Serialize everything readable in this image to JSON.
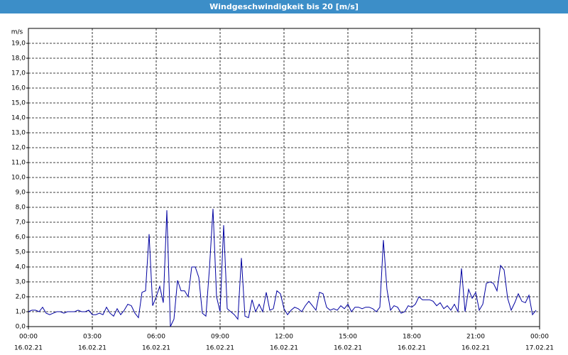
{
  "chart_data": {
    "type": "line",
    "title": "Windgeschwindigkeit bis 20 [m/s]",
    "y_label": "m/s",
    "xlim": [
      0,
      1440
    ],
    "xticks": [
      {
        "value": 0,
        "label": "00:00",
        "date": "16.02.21"
      },
      {
        "value": 180,
        "label": "03:00",
        "date": "16.02.21"
      },
      {
        "value": 360,
        "label": "06:00",
        "date": "16.02.21"
      },
      {
        "value": 540,
        "label": "09:00",
        "date": "16.02.21"
      },
      {
        "value": 720,
        "label": "12:00",
        "date": "16.02.21"
      },
      {
        "value": 900,
        "label": "15:00",
        "date": "16.02.21"
      },
      {
        "value": 1080,
        "label": "18:00",
        "date": "16.02.21"
      },
      {
        "value": 1260,
        "label": "21:00",
        "date": "16.02.21"
      },
      {
        "value": 1440,
        "label": "00:00",
        "date": "17.02.21"
      }
    ],
    "ylim": [
      0,
      20
    ],
    "yticks": [
      {
        "value": 0,
        "label": "0,0"
      },
      {
        "value": 1,
        "label": "1,0"
      },
      {
        "value": 2,
        "label": "2,0"
      },
      {
        "value": 3,
        "label": "3,0"
      },
      {
        "value": 4,
        "label": "4,0"
      },
      {
        "value": 5,
        "label": "5,0"
      },
      {
        "value": 6,
        "label": "6,0"
      },
      {
        "value": 7,
        "label": "7,0"
      },
      {
        "value": 8,
        "label": "8,0"
      },
      {
        "value": 9,
        "label": "9,0"
      },
      {
        "value": 10,
        "label": "10,0"
      },
      {
        "value": 11,
        "label": "11,0"
      },
      {
        "value": 12,
        "label": "12,0"
      },
      {
        "value": 13,
        "label": "13,0"
      },
      {
        "value": 14,
        "label": "14,0"
      },
      {
        "value": 15,
        "label": "15,0"
      },
      {
        "value": 16,
        "label": "16,0"
      },
      {
        "value": 17,
        "label": "17,0"
      },
      {
        "value": 18,
        "label": "18,0"
      },
      {
        "value": 19,
        "label": "19,0"
      }
    ],
    "grid": true,
    "x": [
      0,
      10,
      20,
      30,
      40,
      50,
      60,
      70,
      80,
      90,
      100,
      110,
      120,
      130,
      140,
      150,
      160,
      170,
      180,
      190,
      200,
      210,
      220,
      230,
      240,
      250,
      260,
      270,
      280,
      290,
      300,
      310,
      320,
      330,
      340,
      350,
      360,
      370,
      380,
      390,
      400,
      410,
      420,
      430,
      440,
      450,
      460,
      470,
      480,
      490,
      500,
      510,
      520,
      530,
      540,
      550,
      560,
      570,
      580,
      590,
      600,
      610,
      620,
      630,
      640,
      650,
      660,
      670,
      680,
      690,
      700,
      710,
      720,
      730,
      740,
      750,
      760,
      770,
      780,
      790,
      800,
      810,
      820,
      830,
      840,
      850,
      860,
      870,
      880,
      890,
      900,
      910,
      920,
      930,
      940,
      950,
      960,
      970,
      980,
      990,
      1000,
      1010,
      1020,
      1030,
      1040,
      1050,
      1060,
      1070,
      1080,
      1090,
      1100,
      1110,
      1120,
      1130,
      1140,
      1150,
      1160,
      1170,
      1180,
      1190,
      1200,
      1210,
      1220,
      1230,
      1240,
      1250,
      1260,
      1270,
      1280,
      1290,
      1300,
      1310,
      1320,
      1330,
      1340,
      1350,
      1360,
      1370,
      1380,
      1390,
      1400,
      1410,
      1420,
      1430
    ],
    "series": [
      {
        "color": "#0000a0",
        "values": [
          1.0,
          1.1,
          1.1,
          1.0,
          1.3,
          0.9,
          0.8,
          0.9,
          1.0,
          1.0,
          0.9,
          1.0,
          1.0,
          1.0,
          1.1,
          1.0,
          1.0,
          1.1,
          0.8,
          0.8,
          0.9,
          0.8,
          1.3,
          0.9,
          0.7,
          1.2,
          0.8,
          1.1,
          1.5,
          1.4,
          0.9,
          0.6,
          2.3,
          2.4,
          6.2,
          1.4,
          2.0,
          2.7,
          1.6,
          7.8,
          0.0,
          0.5,
          3.1,
          2.4,
          2.4,
          2.0,
          4.0,
          4.0,
          3.3,
          0.9,
          0.7,
          3.9,
          7.9,
          2.0,
          1.0,
          6.8,
          1.2,
          1.0,
          0.8,
          0.5,
          4.6,
          0.7,
          0.6,
          1.8,
          1.0,
          1.5,
          1.0,
          2.3,
          1.1,
          1.2,
          2.4,
          2.2,
          1.2,
          0.8,
          1.1,
          1.3,
          1.2,
          1.0,
          1.4,
          1.7,
          1.4,
          1.1,
          2.3,
          2.2,
          1.3,
          1.1,
          1.2,
          1.1,
          1.4,
          1.2,
          1.5,
          1.0,
          1.3,
          1.3,
          1.2,
          1.3,
          1.3,
          1.2,
          1.0,
          1.3,
          5.8,
          2.5,
          1.1,
          1.4,
          1.3,
          0.9,
          1.0,
          1.4,
          1.3,
          1.5,
          2.0,
          1.8,
          1.8,
          1.8,
          1.7,
          1.4,
          1.6,
          1.2,
          1.4,
          1.1,
          1.5,
          1.0,
          3.9,
          1.0,
          2.5,
          1.9,
          2.3,
          1.1,
          1.5,
          2.9,
          3.0,
          2.9,
          2.4,
          4.1,
          3.8,
          1.9,
          1.1,
          1.6,
          2.2,
          1.7,
          1.6,
          2.1,
          0.8,
          1.1
        ]
      }
    ]
  }
}
